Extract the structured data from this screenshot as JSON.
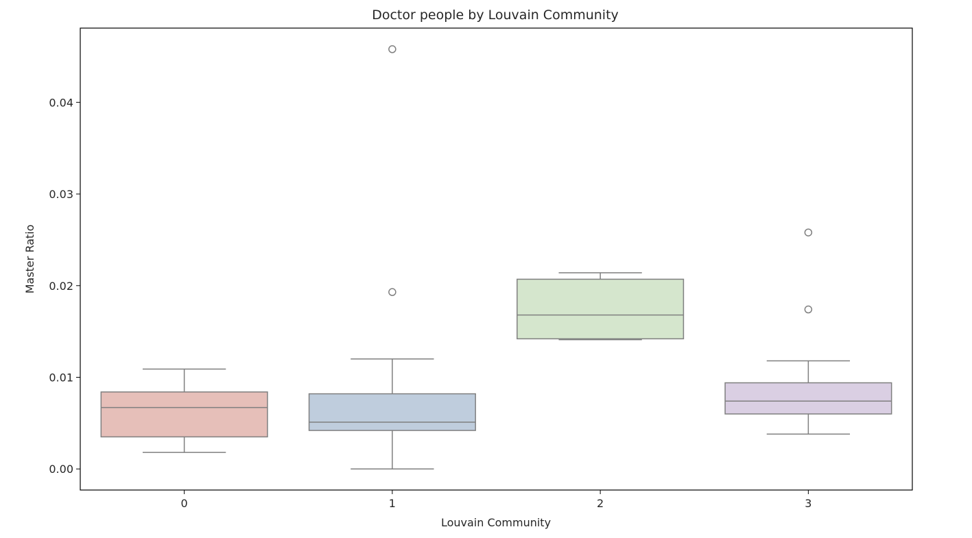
{
  "chart_data": {
    "type": "box",
    "title": "Doctor people by Louvain Community",
    "xlabel": "Louvain Community",
    "ylabel": "Master Ratio",
    "categories": [
      "0",
      "1",
      "2",
      "3"
    ],
    "ylim": [
      -0.0023,
      0.0481
    ],
    "yticks": [
      0.0,
      0.01,
      0.02,
      0.03,
      0.04
    ],
    "ytick_labels": [
      "0.00",
      "0.01",
      "0.02",
      "0.03",
      "0.04"
    ],
    "grid": false,
    "boxes": [
      {
        "category": "0",
        "whisker_low": 0.0018,
        "q1": 0.0035,
        "median": 0.0067,
        "q3": 0.0084,
        "whisker_high": 0.0109,
        "outliers": [],
        "color": "#e6bfb9"
      },
      {
        "category": "1",
        "whisker_low": 0.0,
        "q1": 0.0042,
        "median": 0.0051,
        "q3": 0.0082,
        "whisker_high": 0.012,
        "outliers": [
          0.0193,
          0.0458
        ],
        "color": "#bfcddd"
      },
      {
        "category": "2",
        "whisker_low": 0.0141,
        "q1": 0.0142,
        "median": 0.0168,
        "q3": 0.0207,
        "whisker_high": 0.0214,
        "outliers": [],
        "color": "#d5e6cd"
      },
      {
        "category": "3",
        "whisker_low": 0.0038,
        "q1": 0.006,
        "median": 0.0074,
        "q3": 0.0094,
        "whisker_high": 0.0118,
        "outliers": [
          0.0174,
          0.0258
        ],
        "color": "#dacfe3"
      }
    ],
    "line_color": "#7f7f7f"
  }
}
